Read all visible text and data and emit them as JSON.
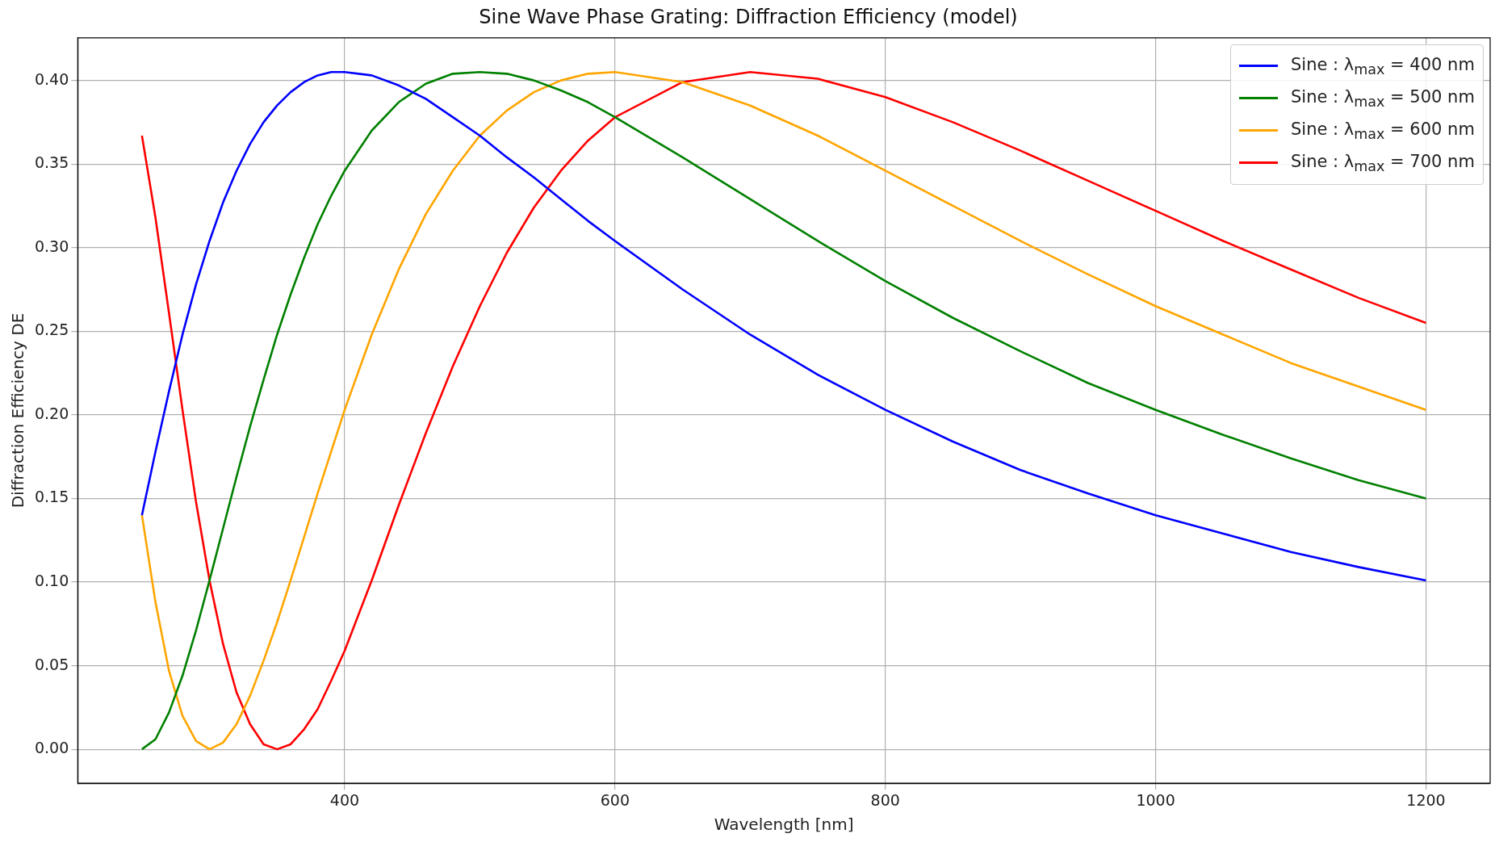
{
  "chart_data": {
    "type": "line",
    "title": "Sine Wave Phase Grating: Diffraction Efficiency (model)",
    "xlabel": "Wavelength [nm]",
    "ylabel": "Diffraction Efficiency DE",
    "x": [
      250,
      260,
      270,
      280,
      290,
      300,
      310,
      320,
      330,
      340,
      350,
      360,
      370,
      380,
      390,
      400,
      420,
      440,
      460,
      480,
      500,
      520,
      540,
      560,
      580,
      600,
      650,
      700,
      750,
      800,
      850,
      900,
      950,
      1000,
      1050,
      1100,
      1150,
      1200
    ],
    "series": [
      {
        "name": "Sine : λ$_{max}$ = 400 nm",
        "color": "#0000ff",
        "values": [
          0.14,
          0.178,
          0.214,
          0.248,
          0.278,
          0.304,
          0.327,
          0.346,
          0.362,
          0.375,
          0.385,
          0.393,
          0.399,
          0.403,
          0.405,
          0.405,
          0.403,
          0.397,
          0.389,
          0.378,
          0.367,
          0.354,
          0.342,
          0.329,
          0.316,
          0.304,
          0.275,
          0.248,
          0.224,
          0.203,
          0.184,
          0.167,
          0.153,
          0.14,
          0.129,
          0.118,
          0.109,
          0.101
        ]
      },
      {
        "name": "Sine : λ$_{max}$ = 500 nm",
        "color": "#008000",
        "values": [
          0.0,
          0.006,
          0.022,
          0.044,
          0.071,
          0.101,
          0.132,
          0.163,
          0.193,
          0.221,
          0.248,
          0.272,
          0.294,
          0.314,
          0.331,
          0.346,
          0.37,
          0.387,
          0.398,
          0.404,
          0.405,
          0.404,
          0.4,
          0.394,
          0.387,
          0.378,
          0.354,
          0.329,
          0.304,
          0.28,
          0.258,
          0.238,
          0.219,
          0.203,
          0.188,
          0.174,
          0.161,
          0.15
        ]
      },
      {
        "name": "Sine : λ$_{max}$ = 600 nm",
        "color": "#ffa500",
        "values": [
          0.14,
          0.088,
          0.047,
          0.02,
          0.005,
          0.0,
          0.004,
          0.015,
          0.032,
          0.053,
          0.076,
          0.101,
          0.127,
          0.153,
          0.178,
          0.203,
          0.248,
          0.287,
          0.32,
          0.346,
          0.367,
          0.382,
          0.393,
          0.4,
          0.404,
          0.405,
          0.399,
          0.385,
          0.367,
          0.346,
          0.325,
          0.304,
          0.284,
          0.265,
          0.248,
          0.231,
          0.217,
          0.203
        ]
      },
      {
        "name": "Sine : λ$_{max}$ = 700 nm",
        "color": "#ff0000",
        "values": [
          0.367,
          0.318,
          0.261,
          0.203,
          0.148,
          0.101,
          0.063,
          0.034,
          0.015,
          0.003,
          0.0,
          0.003,
          0.012,
          0.024,
          0.041,
          0.059,
          0.101,
          0.146,
          0.189,
          0.229,
          0.265,
          0.297,
          0.324,
          0.346,
          0.364,
          0.378,
          0.399,
          0.405,
          0.401,
          0.39,
          0.375,
          0.358,
          0.34,
          0.322,
          0.304,
          0.287,
          0.27,
          0.255
        ]
      }
    ],
    "xlim": [
      202.5,
      1247.5
    ],
    "ylim": [
      -0.0203,
      0.4255
    ],
    "xticks": [
      400,
      600,
      800,
      1000,
      1200
    ],
    "yticks": [
      {
        "value": 0,
        "label": "0.00"
      },
      {
        "value": 0.05,
        "label": "0.05"
      },
      {
        "value": 0.1,
        "label": "0.10"
      },
      {
        "value": 0.15,
        "label": "0.15"
      },
      {
        "value": 0.2,
        "label": "0.20"
      },
      {
        "value": 0.25,
        "label": "0.25"
      },
      {
        "value": 0.3,
        "label": "0.30"
      },
      {
        "value": 0.35,
        "label": "0.35"
      },
      {
        "value": 0.4,
        "label": "0.40"
      }
    ],
    "grid": true,
    "legend": "top right",
    "marker": "none",
    "line_style": "solid"
  }
}
